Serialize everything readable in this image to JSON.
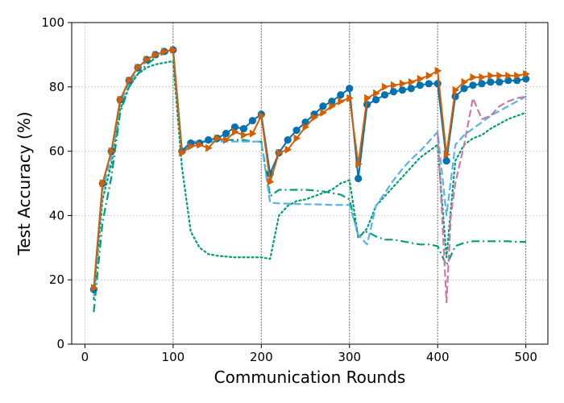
{
  "chart_data": {
    "type": "line",
    "title": "",
    "xlabel": "Communication Rounds",
    "ylabel": "Test Accuracy (%)",
    "xlim": [
      -15,
      525
    ],
    "ylim": [
      0,
      100
    ],
    "xticks": [
      0,
      100,
      200,
      300,
      400,
      500
    ],
    "yticks": [
      0,
      20,
      40,
      60,
      80,
      100
    ],
    "vlines": [
      100,
      200,
      300,
      400,
      500
    ],
    "grid": true,
    "legend": "none",
    "series": [
      {
        "color": "#0072B2",
        "style": "solid",
        "marker": "circle",
        "points": [
          [
            10,
            17
          ],
          [
            20,
            50
          ],
          [
            30,
            60
          ],
          [
            40,
            76
          ],
          [
            50,
            82
          ],
          [
            60,
            86
          ],
          [
            70,
            88.5
          ],
          [
            80,
            90
          ],
          [
            90,
            91
          ],
          [
            100,
            91.5
          ],
          [
            110,
            60
          ],
          [
            120,
            62.5
          ],
          [
            130,
            62.5
          ],
          [
            140,
            63.5
          ],
          [
            150,
            64
          ],
          [
            160,
            65.5
          ],
          [
            170,
            67.5
          ],
          [
            180,
            67
          ],
          [
            190,
            69.5
          ],
          [
            200,
            71.5
          ],
          [
            210,
            53
          ],
          [
            220,
            59.5
          ],
          [
            230,
            63.5
          ],
          [
            240,
            66.5
          ],
          [
            250,
            69
          ],
          [
            260,
            71.5
          ],
          [
            270,
            74
          ],
          [
            280,
            75.5
          ],
          [
            290,
            77.5
          ],
          [
            300,
            79.5
          ],
          [
            310,
            51.5
          ],
          [
            320,
            74.5
          ],
          [
            330,
            76
          ],
          [
            340,
            77.5
          ],
          [
            350,
            78.5
          ],
          [
            360,
            79
          ],
          [
            370,
            79.5
          ],
          [
            380,
            80.5
          ],
          [
            390,
            81
          ],
          [
            400,
            81
          ],
          [
            410,
            57
          ],
          [
            420,
            77
          ],
          [
            430,
            79.5
          ],
          [
            440,
            80.5
          ],
          [
            450,
            81
          ],
          [
            460,
            81.5
          ],
          [
            470,
            81.5
          ],
          [
            480,
            82
          ],
          [
            490,
            82
          ],
          [
            500,
            82.5
          ]
        ]
      },
      {
        "color": "#D55E00",
        "style": "solid",
        "marker": "triangle-right",
        "points": [
          [
            10,
            17.5
          ],
          [
            20,
            50
          ],
          [
            30,
            60
          ],
          [
            40,
            76
          ],
          [
            50,
            82
          ],
          [
            60,
            86
          ],
          [
            70,
            88.5
          ],
          [
            80,
            90
          ],
          [
            90,
            91
          ],
          [
            100,
            91.5
          ],
          [
            110,
            59.5
          ],
          [
            120,
            61.5
          ],
          [
            130,
            62
          ],
          [
            140,
            61
          ],
          [
            150,
            64
          ],
          [
            160,
            63.5
          ],
          [
            170,
            66
          ],
          [
            180,
            65
          ],
          [
            190,
            65.5
          ],
          [
            200,
            71
          ],
          [
            210,
            50.5
          ],
          [
            220,
            59.5
          ],
          [
            230,
            60.5
          ],
          [
            240,
            64
          ],
          [
            250,
            67.5
          ],
          [
            260,
            70.5
          ],
          [
            270,
            72
          ],
          [
            280,
            74
          ],
          [
            290,
            75.5
          ],
          [
            300,
            76.5
          ],
          [
            310,
            56
          ],
          [
            320,
            76.5
          ],
          [
            330,
            78
          ],
          [
            340,
            80
          ],
          [
            350,
            80.5
          ],
          [
            360,
            81
          ],
          [
            370,
            81.5
          ],
          [
            380,
            82.5
          ],
          [
            390,
            83.5
          ],
          [
            400,
            85
          ],
          [
            410,
            59
          ],
          [
            420,
            79
          ],
          [
            430,
            81.5
          ],
          [
            440,
            83
          ],
          [
            450,
            83
          ],
          [
            460,
            83.5
          ],
          [
            470,
            83.5
          ],
          [
            480,
            83.5
          ],
          [
            490,
            83.5
          ],
          [
            500,
            84
          ]
        ]
      },
      {
        "color": "#56B4E9",
        "style": "dashed",
        "marker": "none",
        "points": [
          [
            10,
            15
          ],
          [
            20,
            48
          ],
          [
            30,
            58
          ],
          [
            40,
            75
          ],
          [
            50,
            81
          ],
          [
            60,
            85
          ],
          [
            70,
            88
          ],
          [
            80,
            89.5
          ],
          [
            90,
            91
          ],
          [
            100,
            91.5
          ],
          [
            110,
            60
          ],
          [
            120,
            63
          ],
          [
            130,
            63
          ],
          [
            140,
            63
          ],
          [
            150,
            63
          ],
          [
            160,
            63
          ],
          [
            170,
            63
          ],
          [
            180,
            63
          ],
          [
            190,
            63
          ],
          [
            200,
            63
          ],
          [
            210,
            44
          ],
          [
            220,
            43.8
          ],
          [
            230,
            43.7
          ],
          [
            240,
            43.6
          ],
          [
            250,
            43.5
          ],
          [
            260,
            43.5
          ],
          [
            270,
            43.4
          ],
          [
            280,
            43.3
          ],
          [
            290,
            43.3
          ],
          [
            300,
            43.3
          ],
          [
            310,
            34
          ],
          [
            320,
            31
          ],
          [
            330,
            43
          ],
          [
            340,
            47
          ],
          [
            350,
            51
          ],
          [
            360,
            54.5
          ],
          [
            370,
            57.5
          ],
          [
            380,
            60
          ],
          [
            390,
            63
          ],
          [
            400,
            66
          ],
          [
            410,
            40
          ],
          [
            420,
            62
          ],
          [
            430,
            65
          ],
          [
            440,
            67
          ],
          [
            450,
            69
          ],
          [
            460,
            71
          ],
          [
            470,
            72.5
          ],
          [
            480,
            74
          ],
          [
            490,
            75.5
          ],
          [
            500,
            77
          ]
        ]
      },
      {
        "color": "#CC79A7",
        "style": "dashed",
        "marker": "none",
        "points": [
          [
            400,
            65.5
          ],
          [
            405,
            40
          ],
          [
            410,
            13
          ],
          [
            415,
            40
          ],
          [
            420,
            50
          ],
          [
            430,
            62
          ],
          [
            440,
            76.5
          ],
          [
            450,
            70
          ],
          [
            460,
            71
          ],
          [
            470,
            74
          ],
          [
            480,
            75.5
          ],
          [
            490,
            76.5
          ],
          [
            500,
            77
          ]
        ]
      },
      {
        "color": "#009E73",
        "style": "dashdot",
        "marker": "none",
        "points": [
          [
            10,
            10
          ],
          [
            20,
            38
          ],
          [
            30,
            52
          ],
          [
            40,
            72
          ],
          [
            50,
            80
          ],
          [
            60,
            84
          ],
          [
            70,
            87
          ],
          [
            80,
            89
          ],
          [
            90,
            90.5
          ],
          [
            100,
            91
          ],
          [
            110,
            60
          ],
          [
            120,
            63
          ],
          [
            130,
            63
          ],
          [
            140,
            63
          ],
          [
            150,
            63
          ],
          [
            160,
            63.5
          ],
          [
            170,
            63.5
          ],
          [
            180,
            63.5
          ],
          [
            190,
            63
          ],
          [
            200,
            63
          ],
          [
            210,
            46
          ],
          [
            220,
            48
          ],
          [
            230,
            48
          ],
          [
            240,
            48
          ],
          [
            250,
            48
          ],
          [
            260,
            47.8
          ],
          [
            270,
            47.5
          ],
          [
            280,
            47
          ],
          [
            290,
            46.5
          ],
          [
            300,
            45
          ],
          [
            310,
            33.5
          ],
          [
            320,
            35
          ],
          [
            330,
            33.5
          ],
          [
            340,
            32.5
          ],
          [
            350,
            32.5
          ],
          [
            360,
            32
          ],
          [
            370,
            31.5
          ],
          [
            380,
            31
          ],
          [
            390,
            31
          ],
          [
            400,
            30.5
          ],
          [
            410,
            24.5
          ],
          [
            420,
            30.5
          ],
          [
            430,
            31.5
          ],
          [
            440,
            32
          ],
          [
            450,
            32
          ],
          [
            460,
            32
          ],
          [
            470,
            32
          ],
          [
            480,
            32
          ],
          [
            490,
            31.8
          ],
          [
            500,
            31.8
          ]
        ]
      },
      {
        "color": "#009E73",
        "style": "dotted",
        "marker": "none",
        "points": [
          [
            10,
            14
          ],
          [
            20,
            45
          ],
          [
            30,
            56
          ],
          [
            40,
            73
          ],
          [
            50,
            80
          ],
          [
            60,
            84
          ],
          [
            70,
            86
          ],
          [
            80,
            87
          ],
          [
            90,
            87.5
          ],
          [
            100,
            88
          ],
          [
            110,
            55
          ],
          [
            115,
            45
          ],
          [
            120,
            35
          ],
          [
            130,
            30
          ],
          [
            140,
            28
          ],
          [
            150,
            27.5
          ],
          [
            170,
            27
          ],
          [
            190,
            27
          ],
          [
            200,
            27
          ],
          [
            210,
            26.5
          ],
          [
            220,
            40
          ],
          [
            230,
            43
          ],
          [
            240,
            44.5
          ],
          [
            250,
            45
          ],
          [
            260,
            46
          ],
          [
            270,
            47
          ],
          [
            280,
            48
          ],
          [
            290,
            50
          ],
          [
            300,
            51
          ],
          [
            310,
            33
          ],
          [
            320,
            36
          ],
          [
            330,
            43
          ],
          [
            340,
            46
          ],
          [
            350,
            49
          ],
          [
            360,
            52
          ],
          [
            370,
            55
          ],
          [
            380,
            58
          ],
          [
            390,
            60
          ],
          [
            400,
            62
          ],
          [
            410,
            27
          ],
          [
            420,
            57
          ],
          [
            430,
            62
          ],
          [
            440,
            64
          ],
          [
            450,
            65
          ],
          [
            460,
            67
          ],
          [
            470,
            68.5
          ],
          [
            480,
            70
          ],
          [
            490,
            71
          ],
          [
            500,
            72
          ]
        ]
      }
    ]
  }
}
